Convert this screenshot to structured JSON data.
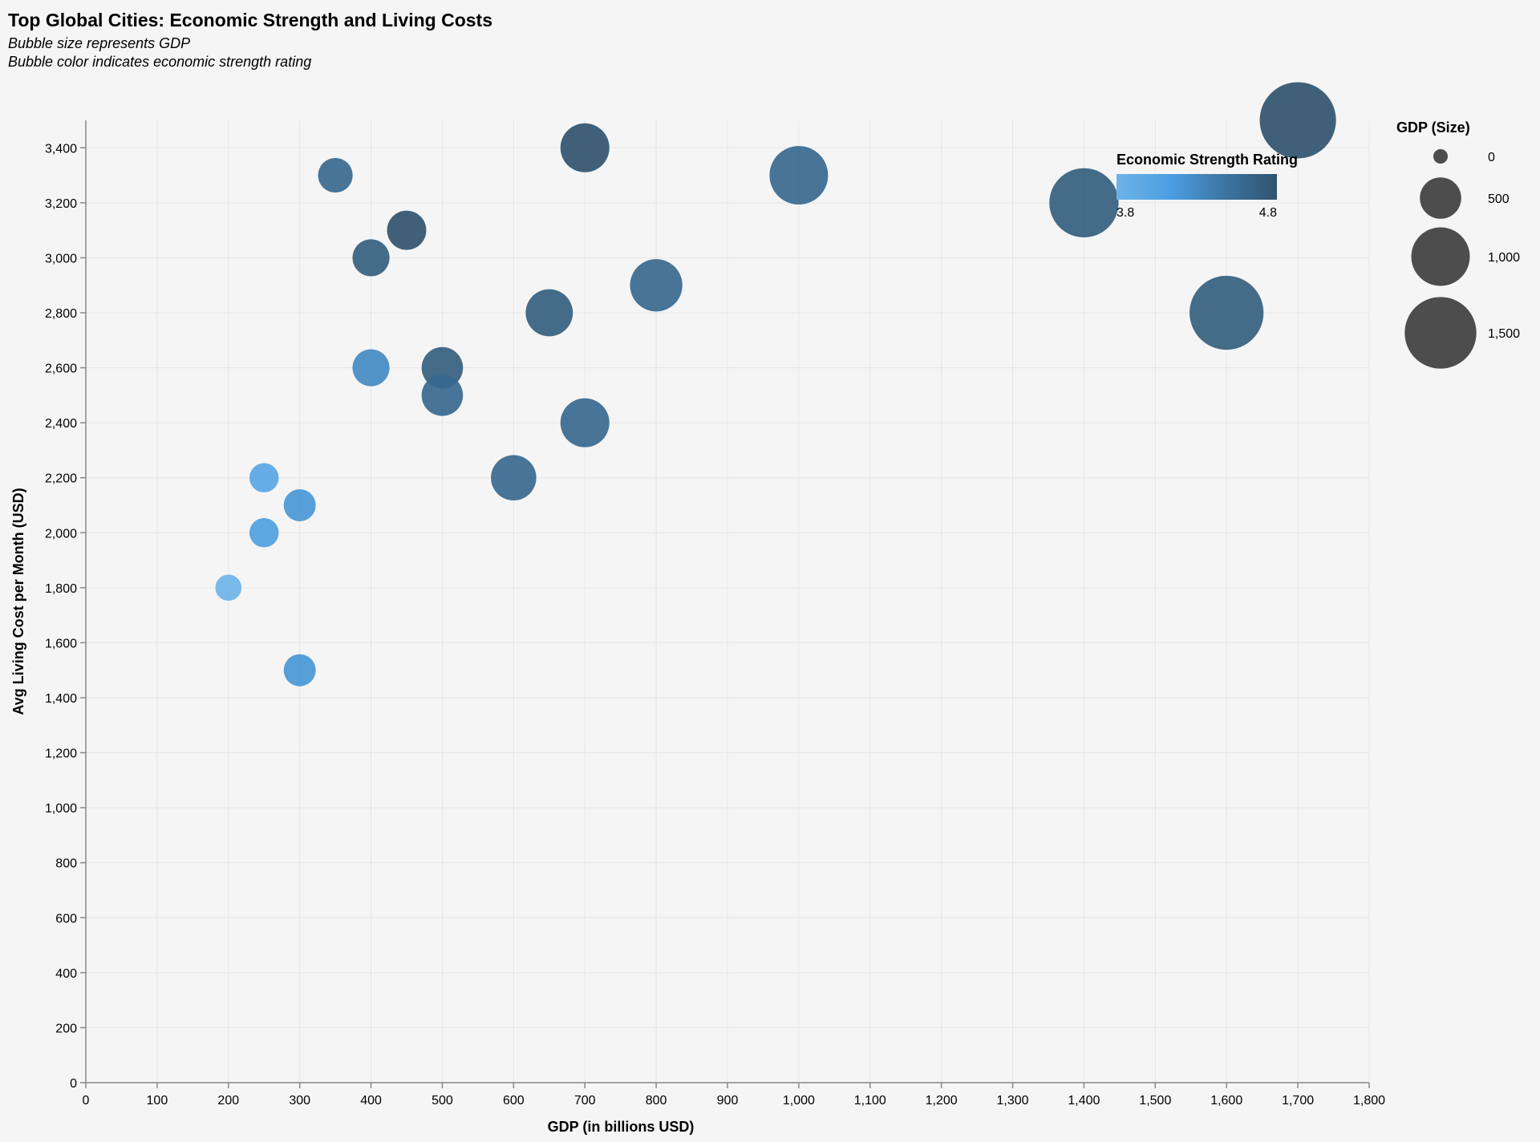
{
  "chart_data": {
    "type": "scatter",
    "title": "Top Global Cities: Economic Strength and Living Costs",
    "subtitle": [
      "Bubble size represents GDP",
      "Bubble color indicates economic strength rating"
    ],
    "xlabel": "GDP (in billions USD)",
    "ylabel": "Avg Living Cost per Month (USD)",
    "xlim": [
      0,
      1800
    ],
    "ylim": [
      0,
      3500
    ],
    "x_ticks": [
      0,
      100,
      200,
      300,
      400,
      500,
      600,
      700,
      800,
      900,
      1000,
      1100,
      1200,
      1300,
      1400,
      1500,
      1600,
      1700,
      1800
    ],
    "y_ticks": [
      0,
      200,
      400,
      600,
      800,
      1000,
      1200,
      1400,
      1600,
      1800,
      2000,
      2200,
      2400,
      2600,
      2800,
      3000,
      3200,
      3400
    ],
    "x_tick_labels": [
      "0",
      "100",
      "200",
      "300",
      "400",
      "500",
      "600",
      "700",
      "800",
      "900",
      "1,000",
      "1,100",
      "1,200",
      "1,300",
      "1,400",
      "1,500",
      "1,600",
      "1,700",
      "1,800"
    ],
    "y_tick_labels": [
      "0",
      "200",
      "400",
      "600",
      "800",
      "1,000",
      "1,200",
      "1,400",
      "1,600",
      "1,800",
      "2,000",
      "2,200",
      "2,400",
      "2,600",
      "2,800",
      "3,000",
      "3,200",
      "3,400"
    ],
    "grid": true,
    "points": [
      {
        "gdp": 1700,
        "cost": 3500,
        "rating": 4.8
      },
      {
        "gdp": 1600,
        "cost": 2800,
        "rating": 4.7
      },
      {
        "gdp": 1400,
        "cost": 3200,
        "rating": 4.7
      },
      {
        "gdp": 1000,
        "cost": 3300,
        "rating": 4.6
      },
      {
        "gdp": 800,
        "cost": 2900,
        "rating": 4.6
      },
      {
        "gdp": 700,
        "cost": 3400,
        "rating": 4.8
      },
      {
        "gdp": 700,
        "cost": 2400,
        "rating": 4.6
      },
      {
        "gdp": 650,
        "cost": 2800,
        "rating": 4.7
      },
      {
        "gdp": 600,
        "cost": 2200,
        "rating": 4.6
      },
      {
        "gdp": 500,
        "cost": 2600,
        "rating": 4.7
      },
      {
        "gdp": 500,
        "cost": 2500,
        "rating": 4.6
      },
      {
        "gdp": 450,
        "cost": 3100,
        "rating": 4.8
      },
      {
        "gdp": 400,
        "cost": 3000,
        "rating": 4.7
      },
      {
        "gdp": 400,
        "cost": 2600,
        "rating": 4.3
      },
      {
        "gdp": 350,
        "cost": 3300,
        "rating": 4.6
      },
      {
        "gdp": 300,
        "cost": 2100,
        "rating": 4.2
      },
      {
        "gdp": 300,
        "cost": 1500,
        "rating": 4.2
      },
      {
        "gdp": 250,
        "cost": 2200,
        "rating": 4.0
      },
      {
        "gdp": 250,
        "cost": 2000,
        "rating": 4.1
      },
      {
        "gdp": 200,
        "cost": 1800,
        "rating": 3.8
      }
    ],
    "color_legend": {
      "title": "Economic Strength Rating",
      "min": 3.8,
      "max": 4.8,
      "min_label": "3.8",
      "max_label": "4.8",
      "colors": [
        "#6db3e8",
        "#4a9de0",
        "#3d78a6",
        "#30536e"
      ]
    },
    "size_legend": {
      "title": "GDP (Size)",
      "values": [
        0,
        500,
        1000,
        1500
      ],
      "labels": [
        "0",
        "500",
        "1,000",
        "1,500"
      ],
      "color": "#4d4d4d"
    },
    "grid_color": "#e6e6e6",
    "background": "#f5f5f5"
  }
}
